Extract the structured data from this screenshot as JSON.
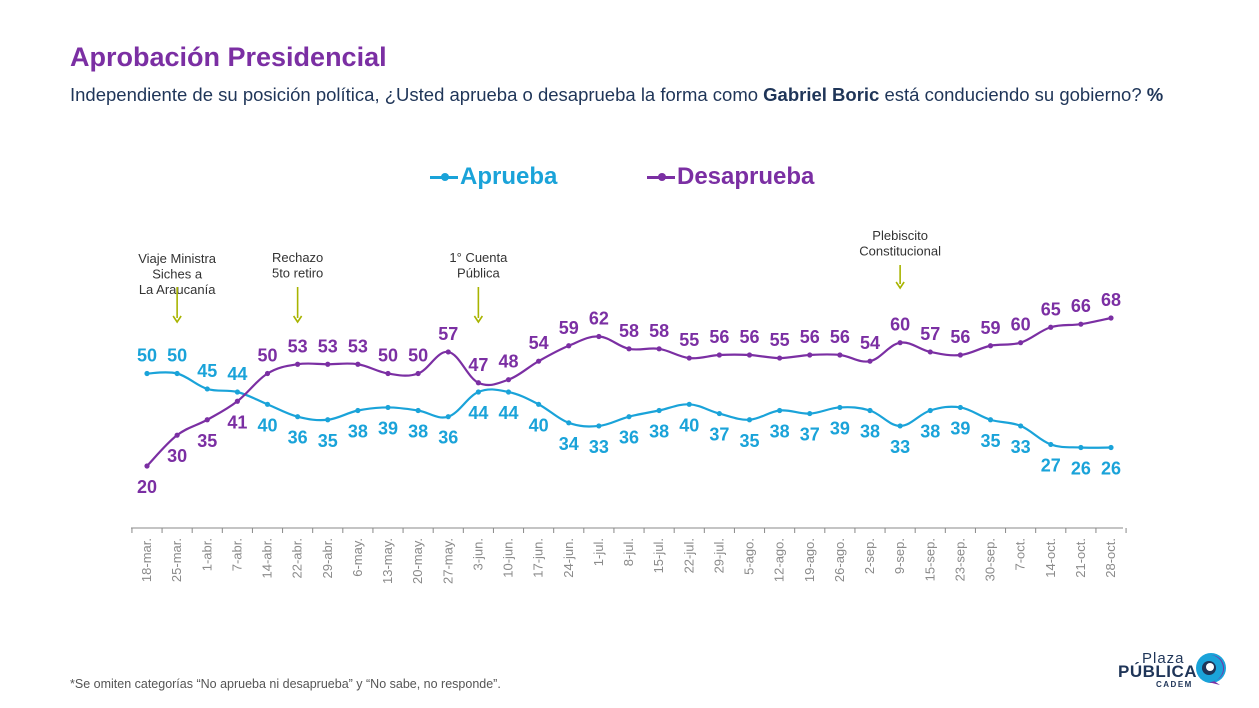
{
  "title": "Aprobación Presidencial",
  "subtitle": {
    "pre": "Independiente de su posición política, ¿Usted aprueba o desaprueba la forma como ",
    "name": "Gabriel Boric",
    "post": " está conduciendo su gobierno? ",
    "unit": "%"
  },
  "colors": {
    "aprueba": "#1aa3d9",
    "desaprueba": "#7b2fa3",
    "axis": "#888888",
    "annotation_arrow": "#a8b400",
    "title": "#7b2fa3",
    "text": "#1f3558"
  },
  "chart_data": {
    "type": "line",
    "title": "Aprobación Presidencial",
    "xlabel": "",
    "ylabel": "",
    "ylim": [
      15,
      75
    ],
    "grid": false,
    "legend_placement": "top-center",
    "categories": [
      "18-mar.",
      "25-mar.",
      "1-abr.",
      "7-abr.",
      "14-abr.",
      "22-abr.",
      "29-abr.",
      "6-may.",
      "13-may.",
      "20-may.",
      "27-may.",
      "3-jun.",
      "10-jun.",
      "17-jun.",
      "24-jun.",
      "1-jul.",
      "8-jul.",
      "15-jul.",
      "22-jul.",
      "29-jul.",
      "5-ago.",
      "12-ago.",
      "19-ago.",
      "26-ago.",
      "2-sep.",
      "9-sep.",
      "15-sep.",
      "23-sep.",
      "30-sep.",
      "7-oct.",
      "14-oct.",
      "21-oct.",
      "28-oct."
    ],
    "series": [
      {
        "name": "Aprueba",
        "color": "#1aa3d9",
        "values": [
          50,
          50,
          45,
          44,
          40,
          36,
          35,
          38,
          39,
          38,
          36,
          44,
          44,
          40,
          34,
          33,
          36,
          38,
          40,
          37,
          35,
          38,
          37,
          39,
          38,
          33,
          38,
          39,
          35,
          33,
          27,
          26,
          26
        ]
      },
      {
        "name": "Desaprueba",
        "color": "#7b2fa3",
        "values": [
          20,
          30,
          35,
          41,
          50,
          53,
          53,
          53,
          50,
          50,
          57,
          47,
          48,
          54,
          59,
          62,
          58,
          58,
          55,
          56,
          56,
          55,
          56,
          56,
          54,
          60,
          57,
          56,
          59,
          60,
          65,
          66,
          68
        ]
      }
    ],
    "annotations": [
      {
        "index": 1,
        "lines": [
          "Viaje Ministra",
          "Siches a",
          "La Araucanía"
        ]
      },
      {
        "index": 5,
        "lines": [
          "Rechazo",
          "5to retiro"
        ]
      },
      {
        "index": 11,
        "lines": [
          "1° Cuenta",
          "Pública"
        ]
      },
      {
        "index": 25,
        "lines": [
          "Plebiscito",
          "Constitucional"
        ]
      }
    ]
  },
  "footnote": "*Se omiten categorías “No aprueba ni desaprueba” y “No sabe, no responde”.",
  "logo": {
    "line1": "Plaza",
    "line2": "PÚBLICA",
    "line3": "CADEM"
  }
}
